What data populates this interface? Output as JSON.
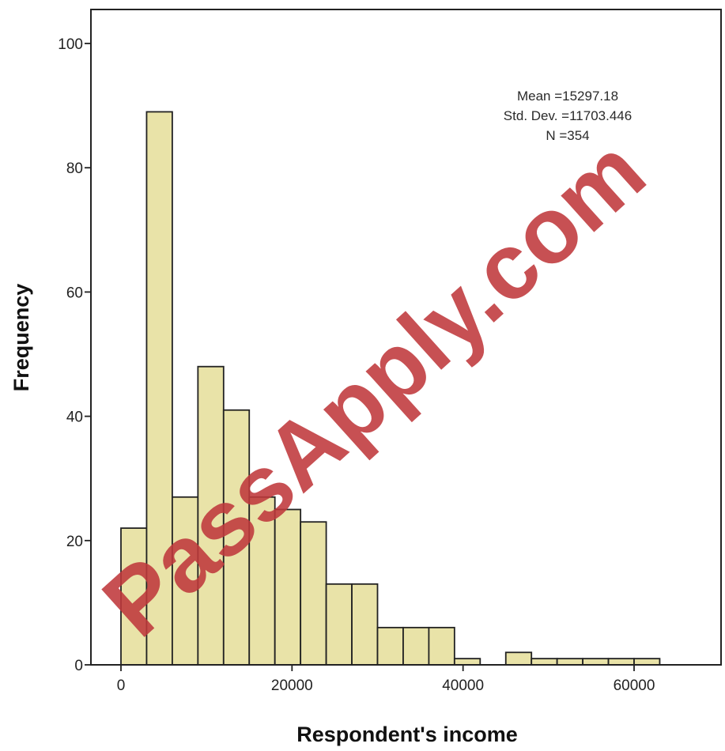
{
  "chart_data": {
    "type": "bar",
    "subtype": "histogram",
    "title": "",
    "xlabel": "Respondent's income",
    "ylabel": "Frequency",
    "xlim": [
      0,
      70000
    ],
    "ylim": [
      0,
      100
    ],
    "x_ticks": [
      0,
      20000,
      40000,
      60000
    ],
    "y_ticks": [
      0,
      20,
      40,
      60,
      80,
      100
    ],
    "bin_width": 3000,
    "bins": [
      {
        "start": 0,
        "end": 3000,
        "count": 22
      },
      {
        "start": 3000,
        "end": 6000,
        "count": 89
      },
      {
        "start": 6000,
        "end": 9000,
        "count": 27
      },
      {
        "start": 9000,
        "end": 12000,
        "count": 48
      },
      {
        "start": 12000,
        "end": 15000,
        "count": 41
      },
      {
        "start": 15000,
        "end": 18000,
        "count": 27
      },
      {
        "start": 18000,
        "end": 21000,
        "count": 25
      },
      {
        "start": 21000,
        "end": 24000,
        "count": 23
      },
      {
        "start": 24000,
        "end": 27000,
        "count": 13
      },
      {
        "start": 27000,
        "end": 30000,
        "count": 13
      },
      {
        "start": 30000,
        "end": 33000,
        "count": 6
      },
      {
        "start": 33000,
        "end": 36000,
        "count": 6
      },
      {
        "start": 36000,
        "end": 39000,
        "count": 6
      },
      {
        "start": 39000,
        "end": 42000,
        "count": 1
      },
      {
        "start": 42000,
        "end": 45000,
        "count": 0
      },
      {
        "start": 45000,
        "end": 48000,
        "count": 2
      },
      {
        "start": 48000,
        "end": 51000,
        "count": 1
      },
      {
        "start": 51000,
        "end": 54000,
        "count": 1
      },
      {
        "start": 54000,
        "end": 57000,
        "count": 1
      },
      {
        "start": 57000,
        "end": 60000,
        "count": 1
      },
      {
        "start": 60000,
        "end": 63000,
        "count": 1
      }
    ],
    "bar_color": "#e9e3a8",
    "bar_edge_color": "#222222",
    "stats": {
      "mean_label": "Mean =15297.18",
      "std_label": "Std. Dev. =11703.446",
      "n_label": "N =354"
    },
    "grid": false,
    "legend": "none"
  },
  "watermark": {
    "text": "PassApply.com",
    "color": "#c0393c"
  }
}
